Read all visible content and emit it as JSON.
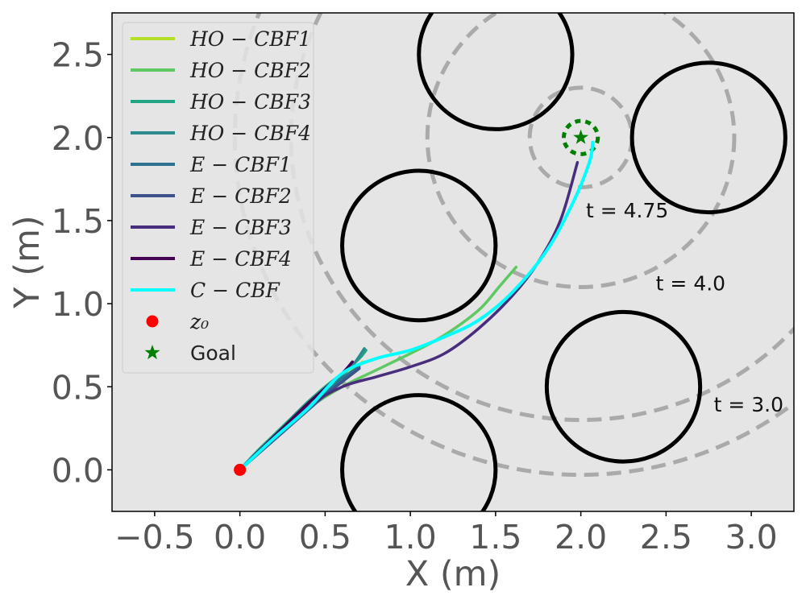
{
  "chart_data": {
    "type": "line",
    "xlabel": "X (m)",
    "ylabel": "Y (m)",
    "xlim": [
      -0.75,
      3.25
    ],
    "ylim": [
      -0.25,
      2.75
    ],
    "xticks": [
      -0.5,
      0.0,
      0.5,
      1.0,
      1.5,
      2.0,
      2.5,
      3.0
    ],
    "xtick_labels": [
      "−0.5",
      "0.0",
      "0.5",
      "1.0",
      "1.5",
      "2.0",
      "2.5",
      "3.0"
    ],
    "yticks": [
      0.0,
      0.5,
      1.0,
      1.5,
      2.0,
      2.5
    ],
    "ytick_labels": [
      "0.0",
      "0.5",
      "1.0",
      "1.5",
      "2.0",
      "2.5"
    ],
    "grid": false,
    "legend_placement": "upper-left",
    "background_color": "#e5e5e5",
    "obstacles": [
      {
        "cx": 1.5,
        "cy": 2.5,
        "r": 0.45
      },
      {
        "cx": 2.75,
        "cy": 2.0,
        "r": 0.45
      },
      {
        "cx": 1.05,
        "cy": 1.35,
        "r": 0.45
      },
      {
        "cx": 2.25,
        "cy": 0.5,
        "r": 0.45
      },
      {
        "cx": 1.05,
        "cy": 0.0,
        "r": 0.45
      }
    ],
    "obstacle_color": "#000000",
    "time_rings": [
      {
        "r": 0.1,
        "color": "#008000",
        "label": ""
      },
      {
        "r": 0.3,
        "color": "#aaaaaa",
        "label": ""
      },
      {
        "r": 0.9,
        "color": "#aaaaaa",
        "label": "t = 4.75",
        "lx": 2.03,
        "ly": 1.52
      },
      {
        "r": 1.7,
        "color": "#aaaaaa",
        "label": "t = 4.0",
        "lx": 2.44,
        "ly": 1.08
      },
      {
        "r": 2.03,
        "color": "#aaaaaa",
        "label": "t = 3.0",
        "lx": 2.78,
        "ly": 0.35
      }
    ],
    "ring_center": [
      2.0,
      2.0
    ],
    "start": {
      "x": 0.0,
      "y": 0.0,
      "color": "#ff0000",
      "label": "z₀"
    },
    "goal": {
      "x": 2.0,
      "y": 2.0,
      "color": "#008000",
      "label": "Goal"
    },
    "series": [
      {
        "name": "HO − CBF1",
        "color": "#b5de2b",
        "x": [
          0.0,
          0.1,
          0.2,
          0.3,
          0.4,
          0.5,
          0.6,
          0.7,
          0.72
        ],
        "y": [
          0.0,
          0.1,
          0.2,
          0.29,
          0.38,
          0.46,
          0.55,
          0.63,
          0.65
        ]
      },
      {
        "name": "HO − CBF2",
        "color": "#5ec962",
        "x": [
          0.0,
          0.2,
          0.4,
          0.6,
          0.8,
          1.0,
          1.15,
          1.3,
          1.42,
          1.52,
          1.62
        ],
        "y": [
          0.0,
          0.2,
          0.37,
          0.5,
          0.6,
          0.7,
          0.78,
          0.88,
          0.98,
          1.1,
          1.22
        ]
      },
      {
        "name": "HO − CBF3",
        "color": "#21a585",
        "x": [
          0.0,
          0.1,
          0.2,
          0.3,
          0.4,
          0.5,
          0.6,
          0.7,
          0.74
        ],
        "y": [
          0.0,
          0.11,
          0.21,
          0.31,
          0.41,
          0.5,
          0.58,
          0.67,
          0.72
        ]
      },
      {
        "name": "HO − CBF4",
        "color": "#2a8a8c",
        "x": [
          0.0,
          0.1,
          0.2,
          0.3,
          0.4,
          0.5,
          0.6,
          0.67,
          0.73
        ],
        "y": [
          0.0,
          0.1,
          0.2,
          0.3,
          0.4,
          0.49,
          0.57,
          0.64,
          0.73
        ]
      },
      {
        "name": "E − CBF1",
        "color": "#2c728e",
        "x": [
          0.0,
          0.1,
          0.2,
          0.3,
          0.4,
          0.5,
          0.6,
          0.7
        ],
        "y": [
          0.0,
          0.1,
          0.19,
          0.28,
          0.37,
          0.46,
          0.55,
          0.62
        ]
      },
      {
        "name": "E − CBF2",
        "color": "#3b528b",
        "x": [
          0.0,
          0.1,
          0.2,
          0.3,
          0.4,
          0.5,
          0.6,
          0.7
        ],
        "y": [
          0.0,
          0.09,
          0.18,
          0.27,
          0.36,
          0.45,
          0.53,
          0.61
        ]
      },
      {
        "name": "E − CBF3",
        "color": "#472d7b",
        "x": [
          0.0,
          0.2,
          0.4,
          0.6,
          0.8,
          1.0,
          1.2,
          1.4,
          1.6,
          1.75,
          1.88,
          1.98
        ],
        "y": [
          0.0,
          0.2,
          0.38,
          0.5,
          0.56,
          0.62,
          0.7,
          0.85,
          1.05,
          1.25,
          1.5,
          1.85
        ]
      },
      {
        "name": "E − CBF4",
        "color": "#440154",
        "x": [
          0.0,
          0.1,
          0.2,
          0.3,
          0.4,
          0.5,
          0.6,
          0.66
        ],
        "y": [
          0.0,
          0.1,
          0.2,
          0.3,
          0.4,
          0.49,
          0.58,
          0.65
        ]
      },
      {
        "name": "C − CBF",
        "color": "#00ffff",
        "x": [
          0.0,
          0.2,
          0.4,
          0.6,
          0.8,
          1.0,
          1.2,
          1.4,
          1.6,
          1.8,
          1.95,
          2.05,
          2.07
        ],
        "y": [
          0.0,
          0.19,
          0.37,
          0.58,
          0.67,
          0.72,
          0.8,
          0.9,
          1.07,
          1.32,
          1.6,
          1.85,
          1.97
        ]
      }
    ]
  }
}
